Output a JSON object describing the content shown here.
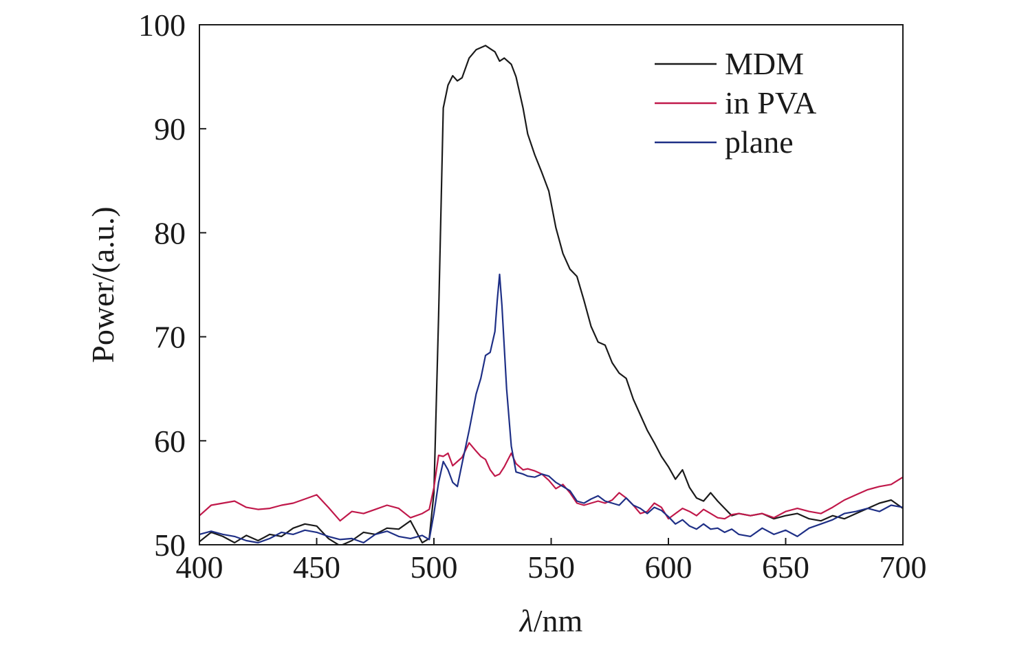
{
  "chart_data": {
    "type": "line",
    "title": "",
    "xlabel": "λ/nm",
    "xlabel_italic_part": "λ",
    "xlabel_rest": "/nm",
    "ylabel": "Power/(a.u.)",
    "xlim": [
      400,
      700
    ],
    "ylim": [
      50,
      100
    ],
    "x_ticks": [
      400,
      450,
      500,
      550,
      600,
      650,
      700
    ],
    "y_ticks": [
      50,
      60,
      70,
      80,
      90,
      100
    ],
    "grid": false,
    "legend_position": "top-right",
    "series": [
      {
        "name": "MDM",
        "color": "#1a1a1a",
        "points": [
          [
            400,
            50.3
          ],
          [
            405,
            51.2
          ],
          [
            410,
            50.8
          ],
          [
            415,
            50.2
          ],
          [
            420,
            50.9
          ],
          [
            425,
            50.4
          ],
          [
            430,
            51.0
          ],
          [
            435,
            50.8
          ],
          [
            440,
            51.6
          ],
          [
            445,
            52.0
          ],
          [
            450,
            51.8
          ],
          [
            455,
            50.6
          ],
          [
            460,
            49.9
          ],
          [
            465,
            50.4
          ],
          [
            470,
            51.2
          ],
          [
            475,
            51.0
          ],
          [
            480,
            51.6
          ],
          [
            485,
            51.5
          ],
          [
            490,
            52.3
          ],
          [
            495,
            50.2
          ],
          [
            498,
            50.6
          ],
          [
            500,
            55.0
          ],
          [
            502,
            72.0
          ],
          [
            504,
            92.0
          ],
          [
            506,
            94.2
          ],
          [
            508,
            95.1
          ],
          [
            510,
            94.6
          ],
          [
            512,
            94.9
          ],
          [
            515,
            96.8
          ],
          [
            518,
            97.6
          ],
          [
            520,
            97.8
          ],
          [
            522,
            98.0
          ],
          [
            524,
            97.7
          ],
          [
            526,
            97.4
          ],
          [
            528,
            96.5
          ],
          [
            530,
            96.8
          ],
          [
            533,
            96.2
          ],
          [
            535,
            95.0
          ],
          [
            538,
            92.0
          ],
          [
            540,
            89.5
          ],
          [
            543,
            87.5
          ],
          [
            546,
            85.8
          ],
          [
            549,
            84.0
          ],
          [
            552,
            80.5
          ],
          [
            555,
            78.0
          ],
          [
            558,
            76.5
          ],
          [
            561,
            75.8
          ],
          [
            564,
            73.5
          ],
          [
            567,
            71.0
          ],
          [
            570,
            69.5
          ],
          [
            573,
            69.2
          ],
          [
            576,
            67.5
          ],
          [
            579,
            66.5
          ],
          [
            582,
            66.0
          ],
          [
            585,
            64.0
          ],
          [
            588,
            62.5
          ],
          [
            591,
            61.0
          ],
          [
            594,
            59.8
          ],
          [
            597,
            58.5
          ],
          [
            600,
            57.5
          ],
          [
            603,
            56.3
          ],
          [
            606,
            57.2
          ],
          [
            609,
            55.5
          ],
          [
            612,
            54.5
          ],
          [
            615,
            54.2
          ],
          [
            618,
            55.0
          ],
          [
            621,
            54.2
          ],
          [
            624,
            53.5
          ],
          [
            627,
            52.8
          ],
          [
            630,
            53.0
          ],
          [
            635,
            52.8
          ],
          [
            640,
            53.0
          ],
          [
            645,
            52.5
          ],
          [
            650,
            52.8
          ],
          [
            655,
            53.0
          ],
          [
            660,
            52.5
          ],
          [
            665,
            52.3
          ],
          [
            670,
            52.8
          ],
          [
            675,
            52.5
          ],
          [
            680,
            53.0
          ],
          [
            685,
            53.5
          ],
          [
            690,
            54.0
          ],
          [
            695,
            54.3
          ],
          [
            700,
            53.5
          ]
        ]
      },
      {
        "name": "in PVA",
        "color": "#c0184a",
        "points": [
          [
            400,
            52.8
          ],
          [
            405,
            53.8
          ],
          [
            410,
            54.0
          ],
          [
            415,
            54.2
          ],
          [
            420,
            53.6
          ],
          [
            425,
            53.4
          ],
          [
            430,
            53.5
          ],
          [
            435,
            53.8
          ],
          [
            440,
            54.0
          ],
          [
            445,
            54.4
          ],
          [
            450,
            54.8
          ],
          [
            455,
            53.6
          ],
          [
            460,
            52.3
          ],
          [
            465,
            53.2
          ],
          [
            470,
            53.0
          ],
          [
            475,
            53.4
          ],
          [
            480,
            53.8
          ],
          [
            485,
            53.5
          ],
          [
            490,
            52.6
          ],
          [
            495,
            53.0
          ],
          [
            498,
            53.4
          ],
          [
            500,
            55.5
          ],
          [
            502,
            58.6
          ],
          [
            504,
            58.5
          ],
          [
            506,
            58.8
          ],
          [
            508,
            57.6
          ],
          [
            510,
            58.0
          ],
          [
            512,
            58.4
          ],
          [
            515,
            59.8
          ],
          [
            518,
            59.0
          ],
          [
            520,
            58.5
          ],
          [
            522,
            58.2
          ],
          [
            524,
            57.2
          ],
          [
            526,
            56.6
          ],
          [
            528,
            56.8
          ],
          [
            530,
            57.5
          ],
          [
            533,
            58.8
          ],
          [
            535,
            57.8
          ],
          [
            538,
            57.2
          ],
          [
            540,
            57.3
          ],
          [
            543,
            57.1
          ],
          [
            546,
            56.8
          ],
          [
            549,
            56.2
          ],
          [
            552,
            55.4
          ],
          [
            555,
            55.8
          ],
          [
            558,
            55.0
          ],
          [
            561,
            54.0
          ],
          [
            564,
            53.8
          ],
          [
            567,
            54.0
          ],
          [
            570,
            54.2
          ],
          [
            573,
            54.0
          ],
          [
            576,
            54.3
          ],
          [
            579,
            55.0
          ],
          [
            582,
            54.5
          ],
          [
            585,
            53.8
          ],
          [
            588,
            53.0
          ],
          [
            591,
            53.2
          ],
          [
            594,
            54.0
          ],
          [
            597,
            53.6
          ],
          [
            600,
            52.5
          ],
          [
            603,
            53.0
          ],
          [
            606,
            53.5
          ],
          [
            609,
            53.2
          ],
          [
            612,
            52.8
          ],
          [
            615,
            53.4
          ],
          [
            618,
            53.0
          ],
          [
            621,
            52.6
          ],
          [
            624,
            52.5
          ],
          [
            627,
            52.9
          ],
          [
            630,
            53.0
          ],
          [
            635,
            52.8
          ],
          [
            640,
            53.0
          ],
          [
            645,
            52.6
          ],
          [
            650,
            53.2
          ],
          [
            655,
            53.5
          ],
          [
            660,
            53.2
          ],
          [
            665,
            53.0
          ],
          [
            670,
            53.6
          ],
          [
            675,
            54.3
          ],
          [
            680,
            54.8
          ],
          [
            685,
            55.3
          ],
          [
            690,
            55.6
          ],
          [
            695,
            55.8
          ],
          [
            700,
            56.5
          ]
        ]
      },
      {
        "name": "plane",
        "color": "#1e2f86",
        "points": [
          [
            400,
            51.0
          ],
          [
            405,
            51.3
          ],
          [
            410,
            51.0
          ],
          [
            415,
            50.8
          ],
          [
            420,
            50.4
          ],
          [
            425,
            50.2
          ],
          [
            430,
            50.6
          ],
          [
            435,
            51.2
          ],
          [
            440,
            51.0
          ],
          [
            445,
            51.4
          ],
          [
            450,
            51.2
          ],
          [
            455,
            50.8
          ],
          [
            460,
            50.5
          ],
          [
            465,
            50.6
          ],
          [
            470,
            50.2
          ],
          [
            475,
            51.0
          ],
          [
            480,
            51.3
          ],
          [
            485,
            50.8
          ],
          [
            490,
            50.6
          ],
          [
            495,
            50.9
          ],
          [
            498,
            50.5
          ],
          [
            500,
            53.0
          ],
          [
            502,
            56.0
          ],
          [
            504,
            58.0
          ],
          [
            506,
            57.2
          ],
          [
            508,
            56.0
          ],
          [
            510,
            55.6
          ],
          [
            512,
            57.8
          ],
          [
            515,
            61.0
          ],
          [
            518,
            64.5
          ],
          [
            520,
            66.0
          ],
          [
            522,
            68.2
          ],
          [
            524,
            68.5
          ],
          [
            526,
            70.5
          ],
          [
            527,
            73.5
          ],
          [
            528,
            76.0
          ],
          [
            529,
            73.0
          ],
          [
            531,
            65.0
          ],
          [
            533,
            59.5
          ],
          [
            535,
            57.0
          ],
          [
            538,
            56.8
          ],
          [
            540,
            56.6
          ],
          [
            543,
            56.5
          ],
          [
            546,
            56.8
          ],
          [
            549,
            56.6
          ],
          [
            552,
            56.0
          ],
          [
            555,
            55.6
          ],
          [
            558,
            55.2
          ],
          [
            561,
            54.2
          ],
          [
            564,
            54.0
          ],
          [
            567,
            54.4
          ],
          [
            570,
            54.7
          ],
          [
            573,
            54.2
          ],
          [
            576,
            54.0
          ],
          [
            579,
            53.8
          ],
          [
            582,
            54.5
          ],
          [
            585,
            53.8
          ],
          [
            588,
            53.5
          ],
          [
            591,
            53.0
          ],
          [
            594,
            53.6
          ],
          [
            597,
            53.3
          ],
          [
            600,
            52.7
          ],
          [
            603,
            52.0
          ],
          [
            606,
            52.4
          ],
          [
            609,
            51.8
          ],
          [
            612,
            51.5
          ],
          [
            615,
            52.0
          ],
          [
            618,
            51.5
          ],
          [
            621,
            51.6
          ],
          [
            624,
            51.2
          ],
          [
            627,
            51.5
          ],
          [
            630,
            51.0
          ],
          [
            635,
            50.8
          ],
          [
            640,
            51.6
          ],
          [
            645,
            51.0
          ],
          [
            650,
            51.4
          ],
          [
            655,
            50.8
          ],
          [
            660,
            51.6
          ],
          [
            665,
            52.0
          ],
          [
            670,
            52.4
          ],
          [
            675,
            53.0
          ],
          [
            680,
            53.2
          ],
          [
            685,
            53.5
          ],
          [
            690,
            53.2
          ],
          [
            695,
            53.8
          ],
          [
            700,
            53.6
          ]
        ]
      }
    ]
  }
}
